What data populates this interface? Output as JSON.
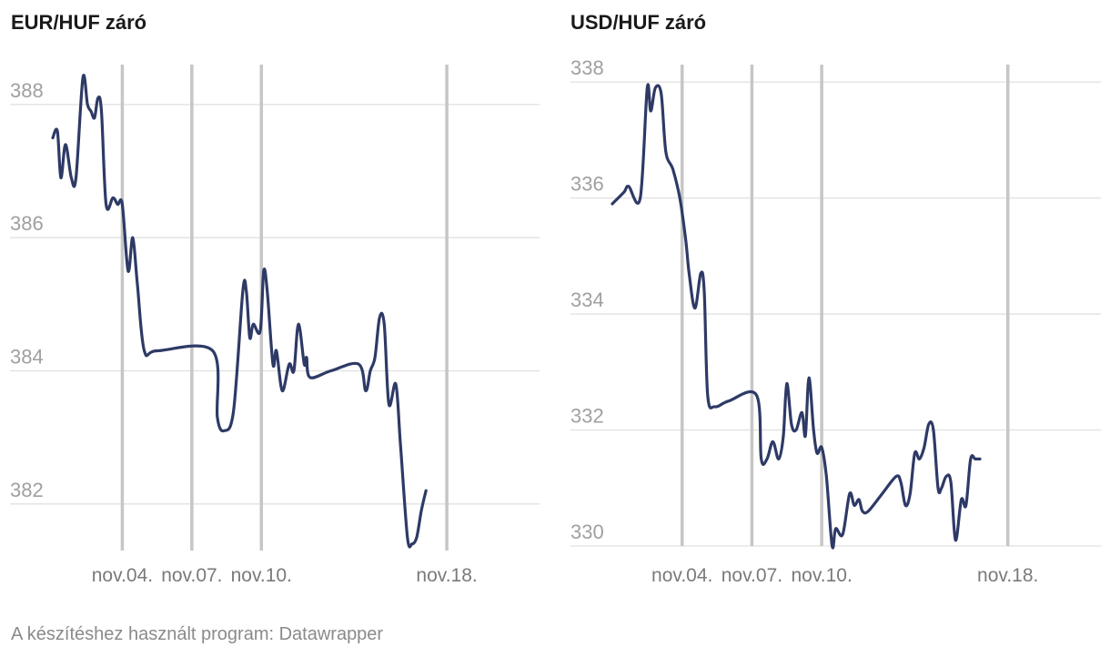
{
  "footer_text": "A készítéshez használt program: Datawrapper",
  "colors": {
    "line": "#2e3a66",
    "gridline": "#e0e0e0",
    "marker_line": "#c6c6c6",
    "tick_text": "#a0a0a0"
  },
  "chart_data": [
    {
      "type": "line",
      "title": "EUR/HUF záró",
      "xlabel": "",
      "ylabel": "",
      "ylim": [
        381.3,
        388.6
      ],
      "y_ticks": [
        382,
        384,
        386,
        388
      ],
      "x_range": [
        1,
        22
      ],
      "x_ticks": [
        {
          "x": 4,
          "label": "nov.04."
        },
        {
          "x": 7,
          "label": "nov.07."
        },
        {
          "x": 10,
          "label": "nov.10."
        },
        {
          "x": 18,
          "label": "nov.18."
        }
      ],
      "grid": true,
      "series": [
        {
          "values": [
            [
              1.0,
              387.5
            ],
            [
              1.2,
              387.6
            ],
            [
              1.35,
              386.9
            ],
            [
              1.55,
              387.4
            ],
            [
              1.8,
              386.9
            ],
            [
              2.0,
              386.9
            ],
            [
              2.3,
              388.4
            ],
            [
              2.5,
              388.0
            ],
            [
              2.65,
              387.9
            ],
            [
              2.8,
              387.8
            ],
            [
              2.95,
              388.1
            ],
            [
              3.1,
              387.9
            ],
            [
              3.3,
              386.5
            ],
            [
              3.6,
              386.6
            ],
            [
              3.8,
              386.5
            ],
            [
              4.0,
              386.5
            ],
            [
              4.25,
              385.5
            ],
            [
              4.45,
              386.0
            ],
            [
              4.65,
              385.3
            ],
            [
              4.95,
              384.3
            ],
            [
              5.5,
              384.3
            ],
            [
              7.9,
              384.3
            ],
            [
              8.1,
              383.3
            ],
            [
              8.4,
              383.1
            ],
            [
              8.8,
              383.4
            ],
            [
              9.2,
              385.2
            ],
            [
              9.35,
              385.2
            ],
            [
              9.5,
              384.5
            ],
            [
              9.65,
              384.7
            ],
            [
              9.95,
              384.6
            ],
            [
              10.1,
              385.5
            ],
            [
              10.25,
              385.2
            ],
            [
              10.5,
              384.1
            ],
            [
              10.65,
              384.3
            ],
            [
              10.9,
              383.7
            ],
            [
              11.2,
              384.1
            ],
            [
              11.4,
              384.0
            ],
            [
              11.6,
              384.7
            ],
            [
              11.85,
              384.1
            ],
            [
              11.95,
              384.2
            ],
            [
              12.1,
              383.9
            ],
            [
              13.0,
              384.0
            ],
            [
              14.2,
              384.1
            ],
            [
              14.5,
              383.7
            ],
            [
              14.7,
              384.0
            ],
            [
              14.9,
              384.2
            ],
            [
              15.1,
              384.8
            ],
            [
              15.3,
              384.7
            ],
            [
              15.5,
              383.5
            ],
            [
              15.8,
              383.8
            ],
            [
              16.0,
              382.9
            ],
            [
              16.3,
              381.5
            ],
            [
              16.5,
              381.4
            ],
            [
              16.7,
              381.5
            ],
            [
              16.9,
              381.9
            ],
            [
              17.1,
              382.2
            ]
          ]
        }
      ]
    },
    {
      "type": "line",
      "title": "USD/HUF záró",
      "xlabel": "",
      "ylabel": "",
      "ylim": [
        330.0,
        338.3
      ],
      "y_ticks": [
        330,
        332,
        334,
        336,
        338
      ],
      "x_range": [
        1,
        22
      ],
      "x_ticks": [
        {
          "x": 4,
          "label": "nov.04."
        },
        {
          "x": 7,
          "label": "nov.07."
        },
        {
          "x": 10,
          "label": "nov.10."
        },
        {
          "x": 18,
          "label": "nov.18."
        }
      ],
      "grid": true,
      "series": [
        {
          "values": [
            [
              1.0,
              335.9
            ],
            [
              1.5,
              336.1
            ],
            [
              1.7,
              336.2
            ],
            [
              2.2,
              336.0
            ],
            [
              2.5,
              337.9
            ],
            [
              2.65,
              337.5
            ],
            [
              2.85,
              337.9
            ],
            [
              3.1,
              337.8
            ],
            [
              3.3,
              336.8
            ],
            [
              3.6,
              336.5
            ],
            [
              3.9,
              336.0
            ],
            [
              4.15,
              335.3
            ],
            [
              4.3,
              334.7
            ],
            [
              4.55,
              334.1
            ],
            [
              4.8,
              334.7
            ],
            [
              4.95,
              334.4
            ],
            [
              5.1,
              332.6
            ],
            [
              5.4,
              332.4
            ],
            [
              6.0,
              332.5
            ],
            [
              7.2,
              332.6
            ],
            [
              7.4,
              331.5
            ],
            [
              7.65,
              331.5
            ],
            [
              7.9,
              331.8
            ],
            [
              8.15,
              331.5
            ],
            [
              8.35,
              331.9
            ],
            [
              8.5,
              332.8
            ],
            [
              8.7,
              332.1
            ],
            [
              8.9,
              332.0
            ],
            [
              9.15,
              332.3
            ],
            [
              9.3,
              331.9
            ],
            [
              9.45,
              332.9
            ],
            [
              9.65,
              332.0
            ],
            [
              9.8,
              331.6
            ],
            [
              10.0,
              331.7
            ],
            [
              10.2,
              331.2
            ],
            [
              10.45,
              330.0
            ],
            [
              10.6,
              330.3
            ],
            [
              10.9,
              330.2
            ],
            [
              11.2,
              330.9
            ],
            [
              11.4,
              330.7
            ],
            [
              11.6,
              330.8
            ],
            [
              11.75,
              330.6
            ],
            [
              12.0,
              330.6
            ],
            [
              12.6,
              330.9
            ],
            [
              13.2,
              331.2
            ],
            [
              13.4,
              331.1
            ],
            [
              13.6,
              330.7
            ],
            [
              13.8,
              330.9
            ],
            [
              14.0,
              331.6
            ],
            [
              14.2,
              331.5
            ],
            [
              14.4,
              331.7
            ],
            [
              14.6,
              332.1
            ],
            [
              14.8,
              332.0
            ],
            [
              15.0,
              331.0
            ],
            [
              15.15,
              331.0
            ],
            [
              15.35,
              331.2
            ],
            [
              15.55,
              331.1
            ],
            [
              15.75,
              330.1
            ],
            [
              16.0,
              330.8
            ],
            [
              16.2,
              330.7
            ],
            [
              16.4,
              331.5
            ],
            [
              16.6,
              331.5
            ],
            [
              16.8,
              331.5
            ]
          ]
        }
      ]
    }
  ]
}
